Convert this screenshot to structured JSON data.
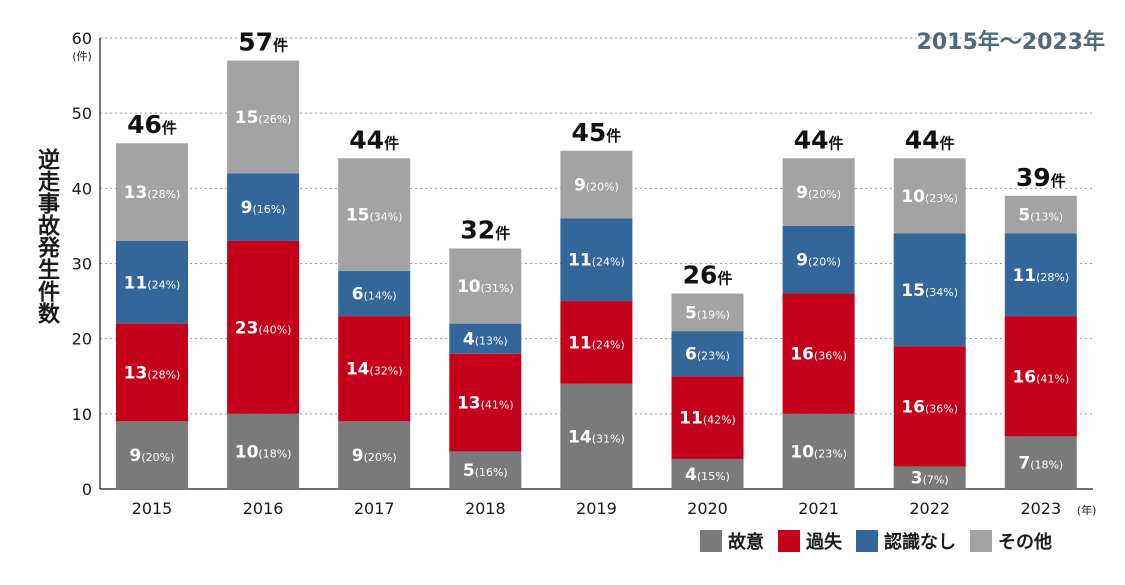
{
  "period": "2015年〜2023年",
  "y_axis_title": "逆走事故発生件数",
  "y_unit": "(件)",
  "x_unit": "(年)",
  "total_suffix": "件",
  "colors": {
    "故意": "#7a7a7a",
    "過失": "#c4001a",
    "認識なし": "#336699",
    "その他": "#a3a3a3"
  },
  "chart_data": {
    "type": "bar",
    "stacked": true,
    "categories": [
      "2015",
      "2016",
      "2017",
      "2018",
      "2019",
      "2020",
      "2021",
      "2022",
      "2023"
    ],
    "ylim": [
      0,
      60
    ],
    "yticks": [
      0,
      10,
      20,
      30,
      40,
      50,
      60
    ],
    "grid": true,
    "legend_position": "bottom-right",
    "totals": [
      46,
      57,
      44,
      32,
      45,
      26,
      44,
      44,
      39
    ],
    "series": [
      {
        "name": "故意",
        "values": [
          9,
          10,
          9,
          5,
          14,
          4,
          10,
          3,
          7
        ],
        "labels": [
          "(20%)",
          "(18%)",
          "(20%)",
          "(16%)",
          "(31%)",
          "(15%)",
          "(23%)",
          "(7%)",
          "(18%)"
        ]
      },
      {
        "name": "過失",
        "values": [
          13,
          23,
          14,
          13,
          11,
          11,
          16,
          16,
          16
        ],
        "labels": [
          "(28%)",
          "(40%)",
          "(32%)",
          "(41%)",
          "(24%)",
          "(42%)",
          "(36%)",
          "(36%)",
          "(41%)"
        ]
      },
      {
        "name": "認識なし",
        "values": [
          11,
          9,
          6,
          4,
          11,
          6,
          9,
          15,
          11
        ],
        "labels": [
          "(24%)",
          "(16%)",
          "(14%)",
          "(13%)",
          "(24%)",
          "(23%)",
          "(20%)",
          "(34%)",
          "(28%)"
        ]
      },
      {
        "name": "その他",
        "values": [
          13,
          15,
          15,
          10,
          9,
          5,
          9,
          10,
          5
        ],
        "labels": [
          "(28%)",
          "(26%)",
          "(34%)",
          "(31%)",
          "(20%)",
          "(19%)",
          "(20%)",
          "(23%)",
          "(13%)"
        ]
      }
    ]
  }
}
